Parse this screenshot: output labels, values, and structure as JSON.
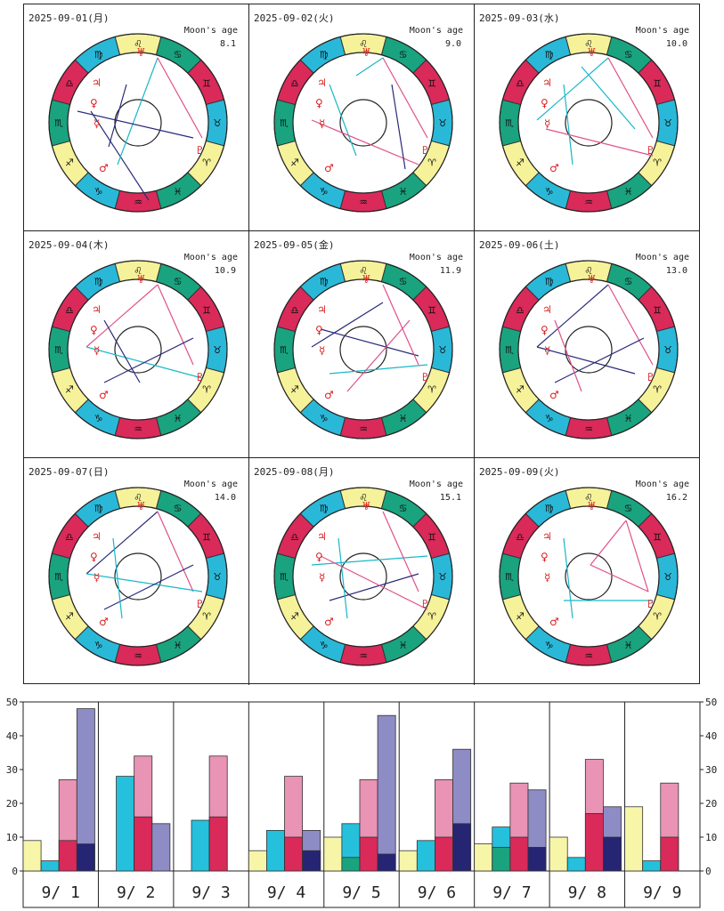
{
  "colors": {
    "fire": "#d92a5a",
    "earth": "#1aa37f",
    "air": "#f6f29a",
    "water": "#2ab8d8",
    "glyph": "#d81c1c",
    "aspect_cyan": "#18b8c8",
    "aspect_pink": "#e0508a",
    "aspect_navy": "#2a2a7a",
    "bar_yellow": "#f7f5a8",
    "bar_cyan": "#25c0dc",
    "bar_teal": "#1aa37f",
    "bar_pink_light": "#e993b5",
    "bar_red": "#d92a5a",
    "bar_lavender": "#8e8cc4",
    "bar_navy": "#252574"
  },
  "panels": [
    {
      "date": "2025-09-01(月)",
      "moon_label": "Moon's age",
      "moon_age": "8.1"
    },
    {
      "date": "2025-09-02(火)",
      "moon_label": "Moon's age",
      "moon_age": "9.0"
    },
    {
      "date": "2025-09-03(水)",
      "moon_label": "Moon's age",
      "moon_age": "10.0"
    },
    {
      "date": "2025-09-04(木)",
      "moon_label": "Moon's age",
      "moon_age": "10.9"
    },
    {
      "date": "2025-09-05(金)",
      "moon_label": "Moon's age",
      "moon_age": "11.9"
    },
    {
      "date": "2025-09-06(土)",
      "moon_label": "Moon's age",
      "moon_age": "13.0"
    },
    {
      "date": "2025-09-07(日)",
      "moon_label": "Moon's age",
      "moon_age": "14.0"
    },
    {
      "date": "2025-09-08(月)",
      "moon_label": "Moon's age",
      "moon_age": "15.1"
    },
    {
      "date": "2025-09-09(火)",
      "moon_label": "Moon's age",
      "moon_age": "16.2"
    }
  ],
  "zodiac_glyphs": [
    "♋",
    "♊",
    "♉",
    "♈",
    "♓",
    "♒",
    "♑",
    "♐",
    "♏",
    "♎",
    "♍",
    "♌"
  ],
  "chart_data": {
    "type": "bar",
    "ylim": [
      0,
      50
    ],
    "yticks": [
      0,
      10,
      20,
      30,
      40,
      50
    ],
    "categories": [
      "9/ 1",
      "9/ 2",
      "9/ 3",
      "9/ 4",
      "9/ 5",
      "9/ 6",
      "9/ 7",
      "9/ 8",
      "9/ 9"
    ],
    "groups": [
      {
        "yellow": 9,
        "cyan": 3,
        "cyan_teal": 0,
        "pink": 27,
        "pink_red": 9,
        "lav": 48,
        "lav_navy": 8
      },
      {
        "yellow": 0,
        "cyan": 28,
        "cyan_teal": 0,
        "pink": 34,
        "pink_red": 16,
        "lav": 14,
        "lav_navy": 0
      },
      {
        "yellow": 0,
        "cyan": 15,
        "cyan_teal": 0,
        "pink": 34,
        "pink_red": 16,
        "lav": 0,
        "lav_navy": 0
      },
      {
        "yellow": 6,
        "cyan": 12,
        "cyan_teal": 0,
        "pink": 28,
        "pink_red": 10,
        "lav": 12,
        "lav_navy": 6
      },
      {
        "yellow": 10,
        "cyan": 14,
        "cyan_teal": 4,
        "pink": 27,
        "pink_red": 10,
        "lav": 46,
        "lav_navy": 5
      },
      {
        "yellow": 6,
        "cyan": 9,
        "cyan_teal": 0,
        "pink": 27,
        "pink_red": 10,
        "lav": 36,
        "lav_navy": 14
      },
      {
        "yellow": 8,
        "cyan": 13,
        "cyan_teal": 7,
        "pink": 26,
        "pink_red": 10,
        "lav": 24,
        "lav_navy": 7
      },
      {
        "yellow": 10,
        "cyan": 4,
        "cyan_teal": 0,
        "pink": 33,
        "pink_red": 17,
        "lav": 19,
        "lav_navy": 10
      },
      {
        "yellow": 19,
        "cyan": 3,
        "cyan_teal": 0,
        "pink": 26,
        "pink_red": 10,
        "lav": 0,
        "lav_navy": 0
      }
    ]
  }
}
